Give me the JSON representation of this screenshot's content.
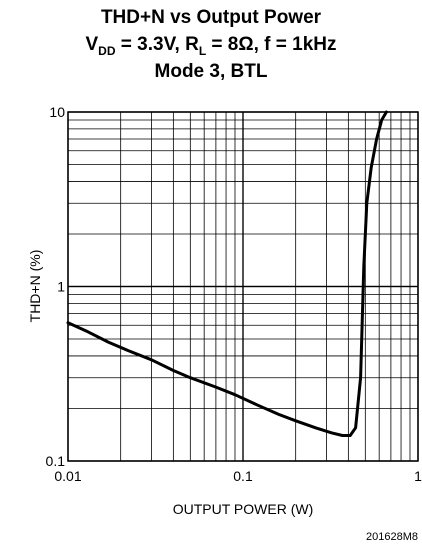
{
  "title": {
    "line1": "THD+N vs Output Power",
    "line2": {
      "vdd_sym": "V",
      "vdd_sub": "DD",
      "vdd_val": " = 3.3V, ",
      "rl_sym": "R",
      "rl_sub": "L",
      "rl_val": " = 8Ω, f = 1kHz"
    },
    "line3": "Mode 3, BTL"
  },
  "figure_code": "201628M8",
  "chart_data": {
    "type": "line",
    "title": "THD+N vs Output Power",
    "xlabel": "OUTPUT POWER (W)",
    "ylabel": "THD+N (%)",
    "xscale": "log",
    "yscale": "log",
    "xlim": [
      0.01,
      1
    ],
    "ylim": [
      0.1,
      10
    ],
    "xticks": [
      {
        "value": 0.01,
        "label": "0.01"
      },
      {
        "value": 0.1,
        "label": "0.1"
      },
      {
        "value": 1,
        "label": "1"
      }
    ],
    "yticks": [
      {
        "value": 0.1,
        "label": "0.1"
      },
      {
        "value": 1,
        "label": "1"
      },
      {
        "value": 10,
        "label": "10"
      }
    ],
    "grid": true,
    "series": [
      {
        "color": "#000000",
        "x": [
          0.01,
          0.013,
          0.017,
          0.022,
          0.03,
          0.04,
          0.05,
          0.07,
          0.09,
          0.12,
          0.16,
          0.2,
          0.26,
          0.32,
          0.37,
          0.41,
          0.44,
          0.47,
          0.49,
          0.51,
          0.54,
          0.58,
          0.62,
          0.66
        ],
        "y": [
          0.62,
          0.55,
          0.48,
          0.43,
          0.38,
          0.33,
          0.3,
          0.265,
          0.24,
          0.21,
          0.185,
          0.17,
          0.155,
          0.145,
          0.14,
          0.14,
          0.155,
          0.3,
          1.3,
          3.0,
          4.8,
          7.0,
          9.0,
          10.0
        ]
      }
    ]
  }
}
